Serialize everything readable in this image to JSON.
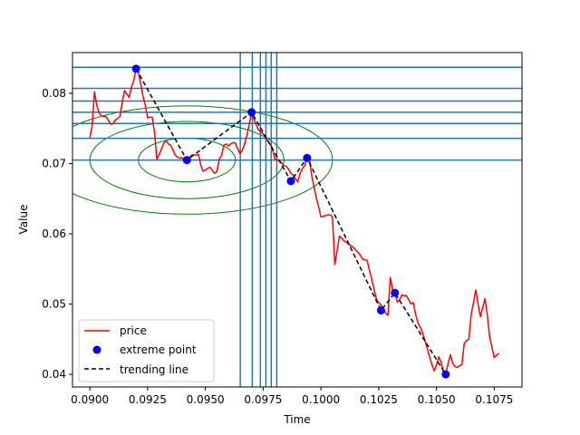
{
  "chart_data": {
    "type": "line",
    "title": "",
    "xlabel": "Time",
    "ylabel": "Value",
    "xlim": [
      0.08925,
      0.1087
    ],
    "ylim": [
      0.0382,
      0.0858
    ],
    "xticks": [
      {
        "value": 0.09,
        "label": "0.0900"
      },
      {
        "value": 0.0925,
        "label": "0.0925"
      },
      {
        "value": 0.095,
        "label": "0.0950"
      },
      {
        "value": 0.0975,
        "label": "0.0975"
      },
      {
        "value": 0.1,
        "label": "0.1000"
      },
      {
        "value": 0.1025,
        "label": "0.1025"
      },
      {
        "value": 0.105,
        "label": "0.1050"
      },
      {
        "value": 0.1075,
        "label": "0.1075"
      }
    ],
    "yticks": [
      {
        "value": 0.04,
        "label": "0.04"
      },
      {
        "value": 0.05,
        "label": "0.05"
      },
      {
        "value": 0.06,
        "label": "0.06"
      },
      {
        "value": 0.07,
        "label": "0.07"
      },
      {
        "value": 0.08,
        "label": "0.08"
      }
    ],
    "legend_position": "lower-left",
    "series": [
      {
        "name": "price",
        "style": "line",
        "color": "#ff0000",
        "x": [
          0.09,
          0.0901,
          0.0902,
          0.0903,
          0.0904,
          0.0905,
          0.0906,
          0.0907,
          0.0908,
          0.0909,
          0.091,
          0.0911,
          0.0912,
          0.0913,
          0.0914,
          0.0915,
          0.0916,
          0.0917,
          0.0918,
          0.0919,
          0.092,
          0.0921,
          0.0922,
          0.0923,
          0.0924,
          0.0925,
          0.0926,
          0.0927,
          0.0928,
          0.0929,
          0.093,
          0.0931,
          0.0932,
          0.0933,
          0.0934,
          0.0935,
          0.0936,
          0.0937,
          0.0938,
          0.0939,
          0.094,
          0.0941,
          0.0942,
          0.0943,
          0.0944,
          0.0945,
          0.0946,
          0.0947,
          0.0948,
          0.0949,
          0.095,
          0.0951,
          0.0952,
          0.0953,
          0.0954,
          0.0955,
          0.0956,
          0.0957,
          0.0958,
          0.0959,
          0.096,
          0.0961,
          0.0962,
          0.0963,
          0.0964,
          0.0965,
          0.0966,
          0.0967,
          0.0968,
          0.0969,
          0.097,
          0.0971,
          0.0972,
          0.0973,
          0.0974,
          0.0975,
          0.0976,
          0.0977,
          0.0978,
          0.0979,
          0.098,
          0.0981,
          0.0982,
          0.0983,
          0.0984,
          0.0985,
          0.0986,
          0.0987,
          0.0988,
          0.0989,
          0.099,
          0.0991,
          0.0992,
          0.0993,
          0.0994,
          0.0995,
          0.0996,
          0.0997,
          0.0998,
          0.0999,
          0.1,
          0.1001,
          0.1002,
          0.1003,
          0.1004,
          0.1005,
          0.1006,
          0.1007,
          0.1008,
          0.1009,
          0.101,
          0.1011,
          0.1012,
          0.1013,
          0.1014,
          0.1015,
          0.1016,
          0.1017,
          0.1018,
          0.1019,
          0.102,
          0.1021,
          0.1022,
          0.1023,
          0.1024,
          0.1025,
          0.1026,
          0.1027,
          0.1028,
          0.1029,
          0.103,
          0.1031,
          0.1032,
          0.1033,
          0.1034,
          0.1035,
          0.1036,
          0.1037,
          0.1038,
          0.1039,
          0.104,
          0.1041,
          0.1042,
          0.1043,
          0.1044,
          0.1045,
          0.1046,
          0.1047,
          0.1048,
          0.1049,
          0.105,
          0.1051,
          0.1052,
          0.1053,
          0.1054,
          0.1055,
          0.1056,
          0.1057,
          0.1058,
          0.1059,
          0.106,
          0.1061,
          0.1062,
          0.1063,
          0.1064,
          0.1065,
          0.1066,
          0.1067,
          0.1068,
          0.1069,
          0.107,
          0.1071,
          0.1072,
          0.1073,
          0.1074,
          0.1075,
          0.1076,
          0.1077
        ],
        "values": [
          0.0737,
          0.0753,
          0.0802,
          0.0783,
          0.0772,
          0.0768,
          0.0767,
          0.0767,
          0.0762,
          0.0756,
          0.0757,
          0.0762,
          0.0764,
          0.0767,
          0.0787,
          0.0804,
          0.0799,
          0.0794,
          0.0809,
          0.0818,
          0.0835,
          0.083,
          0.0814,
          0.0796,
          0.0783,
          0.0765,
          0.0766,
          0.0766,
          0.0744,
          0.0706,
          0.0713,
          0.0721,
          0.0729,
          0.0733,
          0.0728,
          0.0726,
          0.0719,
          0.0712,
          0.0709,
          0.0708,
          0.0708,
          0.0705,
          0.0705,
          0.0708,
          0.0712,
          0.0712,
          0.0712,
          0.0713,
          0.0698,
          0.0689,
          0.0691,
          0.0693,
          0.0695,
          0.069,
          0.0686,
          0.0689,
          0.0706,
          0.0712,
          0.0726,
          0.0728,
          0.0725,
          0.0728,
          0.073,
          0.0729,
          0.0721,
          0.0714,
          0.0719,
          0.0728,
          0.0741,
          0.0756,
          0.0773,
          0.0763,
          0.0755,
          0.0748,
          0.0745,
          0.0742,
          0.0738,
          0.0732,
          0.0727,
          0.0722,
          0.0707,
          0.0705,
          0.0704,
          0.0701,
          0.0697,
          0.0696,
          0.0692,
          0.0686,
          0.0684,
          0.0678,
          0.0674,
          0.0686,
          0.0693,
          0.0697,
          0.0708,
          0.0708,
          0.0683,
          0.0667,
          0.0651,
          0.0639,
          0.0624,
          0.0625,
          0.0626,
          0.0627,
          0.0627,
          0.0624,
          0.0556,
          0.0576,
          0.0597,
          0.0594,
          0.059,
          0.0588,
          0.0585,
          0.0583,
          0.0581,
          0.0577,
          0.0574,
          0.057,
          0.0564,
          0.0563,
          0.0562,
          0.0548,
          0.0535,
          0.0521,
          0.0507,
          0.0502,
          0.0499,
          0.0494,
          0.0487,
          0.0484,
          0.0538,
          0.0521,
          0.0516,
          0.0503,
          0.0506,
          0.0513,
          0.0512,
          0.0512,
          0.0506,
          0.05,
          0.0502,
          0.0485,
          0.0473,
          0.0467,
          0.0459,
          0.0448,
          0.0437,
          0.0425,
          0.0414,
          0.0405,
          0.0413,
          0.0425,
          0.0417,
          0.0404,
          0.04,
          0.0415,
          0.0428,
          0.0416,
          0.0411,
          0.041,
          0.0412,
          0.0414,
          0.0444,
          0.0448,
          0.045,
          0.0485,
          0.0502,
          0.052,
          0.05,
          0.0482,
          0.0495,
          0.0508,
          0.0484,
          0.0453,
          0.0439,
          0.0424,
          0.0427,
          0.043
        ]
      },
      {
        "name": "extreme point",
        "style": "markers",
        "color": "#0000ff",
        "x": [
          0.092,
          0.0942,
          0.097,
          0.0987,
          0.0994,
          0.1026,
          0.1032,
          0.1054
        ],
        "values": [
          0.0835,
          0.0705,
          0.0773,
          0.0675,
          0.0708,
          0.0491,
          0.0516,
          0.04
        ]
      },
      {
        "name": "trending line",
        "style": "dashed",
        "color": "#000000",
        "x": [
          0.092,
          0.0942,
          0.097,
          0.0987,
          0.0994,
          0.1026,
          0.1032,
          0.1054
        ],
        "values": [
          0.0835,
          0.0705,
          0.0773,
          0.0675,
          0.0708,
          0.0491,
          0.0516,
          0.04
        ]
      }
    ],
    "horizontal_lines": {
      "color": "#1f77b4",
      "values": [
        0.0705,
        0.0736,
        0.0757,
        0.0773,
        0.0789,
        0.0807,
        0.0837
      ]
    },
    "vertical_lines": {
      "color": "#1f77b4",
      "values": [
        0.09651,
        0.09703,
        0.09738,
        0.09762,
        0.09785,
        0.09809
      ]
    },
    "ellipses": {
      "color": "#008000",
      "center": [
        0.0942,
        0.0705
      ],
      "semi_axes": [
        [
          0.0021,
          0.0031
        ],
        [
          0.0042,
          0.0055
        ],
        [
          0.0063,
          0.0077
        ]
      ]
    }
  }
}
